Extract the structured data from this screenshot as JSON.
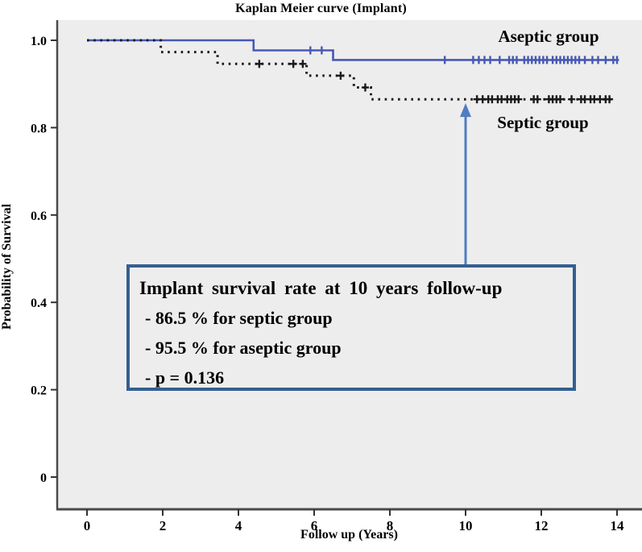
{
  "title": "Kaplan Meier curve (Implant)",
  "axes": {
    "x_label": "Follow up (Years)",
    "y_label": "Probability of Survival"
  },
  "curve_labels": {
    "aseptic": "Aseptic group",
    "septic": "Septic group"
  },
  "annotation": {
    "line1": "Implant survival rate at 10 years follow-up",
    "line2": "- 86.5 % for septic group",
    "line3": "- 95.5 % for aseptic group",
    "line4": "- p = 0.136"
  },
  "chart_data": {
    "type": "line",
    "subtype": "kaplan-meier-step-curve",
    "title": "Kaplan Meier curve (Implant)",
    "xlabel": "Follow up (Years)",
    "ylabel": "Probability of Survival",
    "xlim": [
      0,
      14.6
    ],
    "ylim": [
      0,
      1.07
    ],
    "x_ticks": [
      0,
      2,
      4,
      6,
      8,
      10,
      12,
      14
    ],
    "y_ticks": [
      {
        "value": 1.0,
        "label": "1.0"
      },
      {
        "value": 0.8,
        "label": "0.8"
      },
      {
        "value": 0.6,
        "label": "0.6"
      },
      {
        "value": 0.4,
        "label": "0.4"
      },
      {
        "value": 0.2,
        "label": "0.2"
      },
      {
        "value": 0.0,
        "label": "0"
      }
    ],
    "grid": false,
    "plot_background": "#ededed",
    "series": [
      {
        "name": "Aseptic group",
        "color": "#4659b4",
        "line_style": "solid",
        "survival_at_10_years": 0.955,
        "steps": [
          [
            0,
            1.0
          ],
          [
            4.4,
            1.0
          ],
          [
            4.4,
            0.977
          ],
          [
            6.5,
            0.977
          ],
          [
            6.5,
            0.955
          ],
          [
            14.05,
            0.955
          ]
        ],
        "censor_marks": [
          [
            5.9,
            0.977
          ],
          [
            6.2,
            0.977
          ],
          [
            9.45,
            0.955
          ],
          [
            10.2,
            0.955
          ],
          [
            10.35,
            0.955
          ],
          [
            10.5,
            0.955
          ],
          [
            10.65,
            0.955
          ],
          [
            10.9,
            0.955
          ],
          [
            11.15,
            0.955
          ],
          [
            11.25,
            0.955
          ],
          [
            11.35,
            0.955
          ],
          [
            11.55,
            0.955
          ],
          [
            11.65,
            0.955
          ],
          [
            11.75,
            0.955
          ],
          [
            11.85,
            0.955
          ],
          [
            11.95,
            0.955
          ],
          [
            12.05,
            0.955
          ],
          [
            12.15,
            0.955
          ],
          [
            12.3,
            0.955
          ],
          [
            12.4,
            0.955
          ],
          [
            12.5,
            0.955
          ],
          [
            12.6,
            0.955
          ],
          [
            12.7,
            0.955
          ],
          [
            12.8,
            0.955
          ],
          [
            12.9,
            0.955
          ],
          [
            13.0,
            0.955
          ],
          [
            13.15,
            0.955
          ],
          [
            13.35,
            0.955
          ],
          [
            13.5,
            0.955
          ],
          [
            13.7,
            0.955
          ],
          [
            13.9,
            0.955
          ],
          [
            14.0,
            0.955
          ]
        ]
      },
      {
        "name": "Septic group",
        "color": "#1a1a1a",
        "line_style": "dotted",
        "survival_at_10_years": 0.865,
        "steps": [
          [
            0,
            1.0
          ],
          [
            1.95,
            1.0
          ],
          [
            1.95,
            0.973
          ],
          [
            3.45,
            0.973
          ],
          [
            3.45,
            0.946
          ],
          [
            5.8,
            0.946
          ],
          [
            5.8,
            0.919
          ],
          [
            7.05,
            0.919
          ],
          [
            7.05,
            0.892
          ],
          [
            7.5,
            0.892
          ],
          [
            7.5,
            0.865
          ],
          [
            13.9,
            0.865
          ]
        ],
        "censor_marks": [
          [
            4.55,
            0.946
          ],
          [
            5.45,
            0.946
          ],
          [
            5.7,
            0.946
          ],
          [
            6.7,
            0.919
          ],
          [
            7.35,
            0.892
          ],
          [
            10.3,
            0.865
          ],
          [
            10.45,
            0.865
          ],
          [
            10.6,
            0.865
          ],
          [
            10.7,
            0.865
          ],
          [
            10.85,
            0.865
          ],
          [
            10.95,
            0.865
          ],
          [
            11.1,
            0.865
          ],
          [
            11.2,
            0.865
          ],
          [
            11.3,
            0.865
          ],
          [
            11.4,
            0.865
          ],
          [
            11.8,
            0.865
          ],
          [
            11.9,
            0.865
          ],
          [
            12.2,
            0.865
          ],
          [
            12.3,
            0.865
          ],
          [
            12.4,
            0.865
          ],
          [
            12.5,
            0.865
          ],
          [
            12.8,
            0.865
          ],
          [
            13.05,
            0.865
          ],
          [
            13.15,
            0.865
          ],
          [
            13.3,
            0.865
          ],
          [
            13.4,
            0.865
          ],
          [
            13.55,
            0.865
          ],
          [
            13.7,
            0.865
          ],
          [
            13.8,
            0.865
          ]
        ]
      }
    ],
    "annotation": {
      "text_lines": [
        "Implant survival rate at 10 years follow-up",
        "- 86.5 % for septic group",
        "- 95.5 % for aseptic group",
        "- p = 0.136"
      ],
      "p_value": 0.136,
      "arrow_points_to": {
        "x": 10,
        "y": 0.865
      },
      "arrow_color": "#4f7dc2",
      "box_border_color": "#345f91"
    },
    "legend_position": "on-chart-labels",
    "axis_color": "#4a4a4a"
  }
}
